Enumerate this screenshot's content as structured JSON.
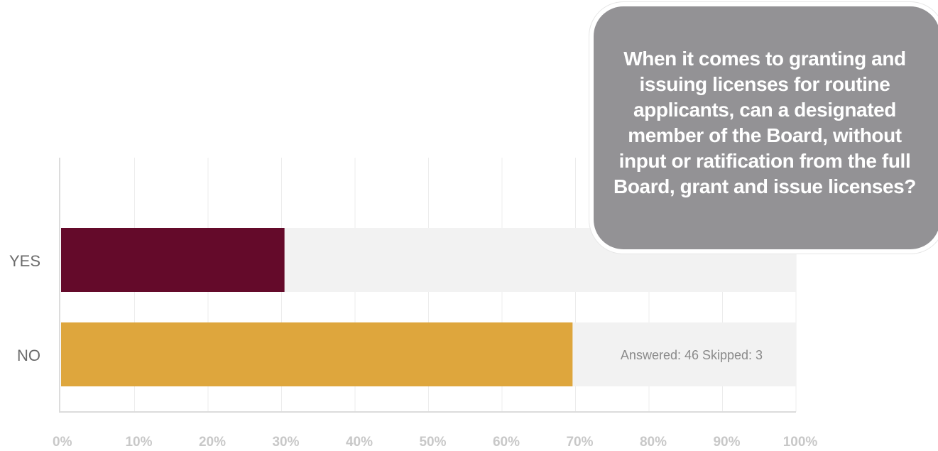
{
  "chart_data": {
    "type": "bar",
    "orientation": "horizontal",
    "categories": [
      "YES",
      "NO"
    ],
    "values": [
      30.4,
      69.6
    ],
    "colors": [
      "#640a2a",
      "#dea63d"
    ],
    "track_color": "#f2f2f2",
    "xlim": [
      0,
      100
    ],
    "x_ticks": [
      "0%",
      "10%",
      "20%",
      "30%",
      "40%",
      "50%",
      "60%",
      "70%",
      "80%",
      "90%",
      "100%"
    ],
    "grid": true,
    "annotation": "Answered: 46 Skipped: 3"
  },
  "question": {
    "text": "When it comes to granting and issuing licenses for routine applicants, can a designated member of the Board, without input or ratification from the full Board, grant and issue licenses?"
  }
}
